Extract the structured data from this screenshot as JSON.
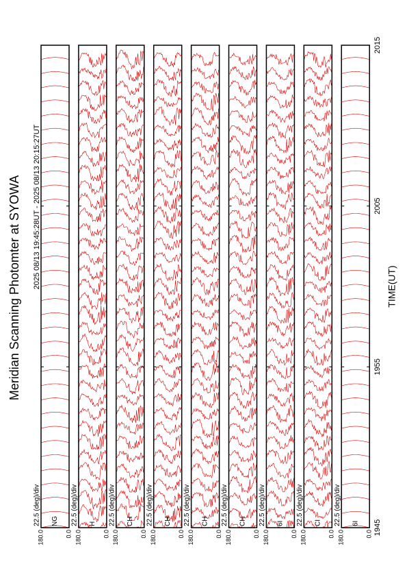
{
  "chart_data": {
    "type": "msp-stack",
    "title": "Meridian Scanning Photomter at SYOWA",
    "subtitle": "2025 08/13 19:45:28UT - 2025 08/13 20:15:27UT",
    "x_label": "TIME(UT)",
    "xticks": [
      "1945",
      "1955",
      "2005",
      "2015"
    ],
    "color": "#e00000",
    "panels": [
      {
        "channel": "NG",
        "scale": "22.5 (deg)/div",
        "yticks": [
          {
            "value": 0,
            "label": "0.0"
          },
          {
            "value": 180,
            "label": "180.0"
          }
        ]
      },
      {
        "channel": "H",
        "scale": "22.5 (deg)/div",
        "yticks": [
          {
            "value": 0,
            "label": "0.0"
          },
          {
            "value": 180,
            "label": "180.0"
          }
        ]
      },
      {
        "channel": "CH",
        "scale": "22.5 (deg)/div",
        "yticks": [
          {
            "value": 0,
            "label": "0.0"
          },
          {
            "value": 180,
            "label": "180.0"
          }
        ]
      },
      {
        "channel": "CH",
        "scale": "22.5 (deg)/div",
        "yticks": [
          {
            "value": 0,
            "label": "0.0"
          },
          {
            "value": 180,
            "label": "180.0"
          }
        ]
      },
      {
        "channel": "CH",
        "scale": "22.5 (deg)/div",
        "yticks": [
          {
            "value": 0,
            "label": "0.0"
          },
          {
            "value": 180,
            "label": "180.0"
          }
        ]
      },
      {
        "channel": "CH",
        "scale": "22.5 (deg)/div",
        "yticks": [
          {
            "value": 0,
            "label": "0.0"
          },
          {
            "value": 180,
            "label": "180.0"
          }
        ]
      },
      {
        "channel": "6I",
        "scale": "22.5 (deg)/div",
        "yticks": [
          {
            "value": 0,
            "label": "0.0"
          },
          {
            "value": 180,
            "label": "180.0"
          }
        ]
      },
      {
        "channel": "CI",
        "scale": "22.5 (deg)/div",
        "yticks": [
          {
            "value": 0,
            "label": "0.0"
          },
          {
            "value": 180,
            "label": "180.0"
          }
        ]
      },
      {
        "channel": "6I",
        "scale": "22.5 (deg)/div",
        "yticks": [
          {
            "value": 0,
            "label": "0.0"
          },
          {
            "value": 180,
            "label": "180.0"
          }
        ]
      }
    ]
  }
}
